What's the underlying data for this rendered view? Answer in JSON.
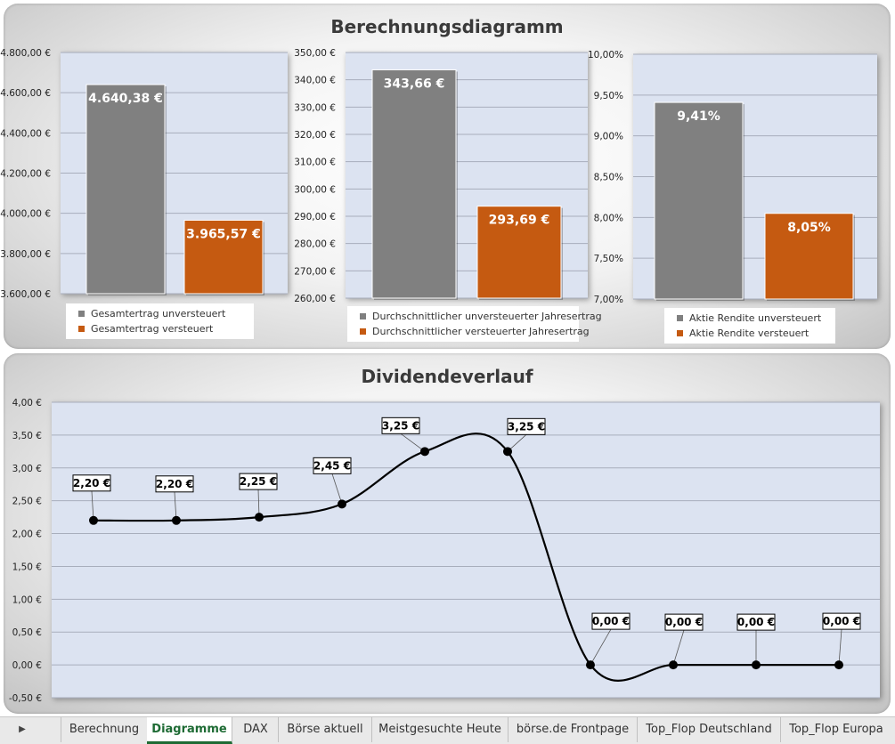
{
  "top_panel": {
    "title": "Berechnungsdiagramm"
  },
  "bottom_panel": {
    "title": "Dividendeverlauf"
  },
  "tabs": {
    "nav_arrow": "▶",
    "items": [
      "Berechnung",
      "Diagramme",
      "DAX",
      "Börse aktuell",
      "Meistgesuchte Heute",
      "börse.de Frontpage",
      "Top_Flop Deutschland",
      "Top_Flop Europa"
    ],
    "active": "Diagramme"
  },
  "colors": {
    "grey": "#808080",
    "orange": "#c55a11",
    "plot_bg": "#dce3f1",
    "grid": "#a8aebc"
  },
  "chart_data": [
    {
      "type": "bar",
      "categories": [
        "Gesamtertrag unversteuert",
        "Gesamtertrag versteuert"
      ],
      "values": [
        4640.38,
        3965.57
      ],
      "value_labels": [
        "4.640,38 €",
        "3.965,57 €"
      ],
      "ylim": [
        3600,
        4800
      ],
      "y_ticks": [
        "4.800,00 €",
        "4.600,00 €",
        "4.400,00 €",
        "4.200,00 €",
        "4.000,00 €",
        "3.800,00 €",
        "3.600,00 €"
      ],
      "legend": [
        "Gesamtertrag unversteuert",
        "Gesamtertrag versteuert"
      ],
      "legend_position": "bottom"
    },
    {
      "type": "bar",
      "categories": [
        "Durchschnittlicher unversteuerter Jahresertrag",
        "Durchschnittlicher versteuerter Jahresertrag"
      ],
      "values": [
        343.66,
        293.69
      ],
      "value_labels": [
        "343,66 €",
        "293,69 €"
      ],
      "ylim": [
        260,
        350
      ],
      "y_ticks": [
        "350,00 €",
        "340,00 €",
        "330,00 €",
        "320,00 €",
        "310,00 €",
        "300,00 €",
        "290,00 €",
        "280,00 €",
        "270,00 €",
        "260,00 €"
      ],
      "legend": [
        "Durchschnittlicher unversteuerter Jahresertrag",
        "Durchschnittlicher versteuerter Jahresertrag"
      ],
      "legend_position": "bottom"
    },
    {
      "type": "bar",
      "categories": [
        "Aktie Rendite unversteuert",
        "Aktie Rendite versteuert"
      ],
      "values": [
        9.41,
        8.05
      ],
      "value_labels": [
        "9,41%",
        "8,05%"
      ],
      "ylim": [
        7.0,
        10.0
      ],
      "y_ticks": [
        "10,00%",
        "9,50%",
        "9,00%",
        "8,50%",
        "8,00%",
        "7,50%",
        "7,00%"
      ],
      "legend": [
        "Aktie Rendite unversteuert",
        "Aktie Rendite versteuert"
      ],
      "legend_position": "bottom"
    },
    {
      "type": "line",
      "smooth": true,
      "values": [
        2.2,
        2.2,
        2.25,
        2.45,
        3.25,
        3.25,
        0.0,
        0.0,
        0.0,
        0.0
      ],
      "value_labels": [
        "2,20 €",
        "2,20 €",
        "2,25 €",
        "2,45 €",
        "3,25 €",
        "3,25 €",
        "0,00 €",
        "0,00 €",
        "0,00 €",
        "0,00 €"
      ],
      "ylim": [
        -0.5,
        4.0
      ],
      "y_ticks": [
        "4,00 €",
        "3,50 €",
        "3,00 €",
        "2,50 €",
        "2,00 €",
        "1,50 €",
        "1,00 €",
        "0,50 €",
        "0,00 €",
        "-0,50 €"
      ],
      "grid": true
    }
  ]
}
